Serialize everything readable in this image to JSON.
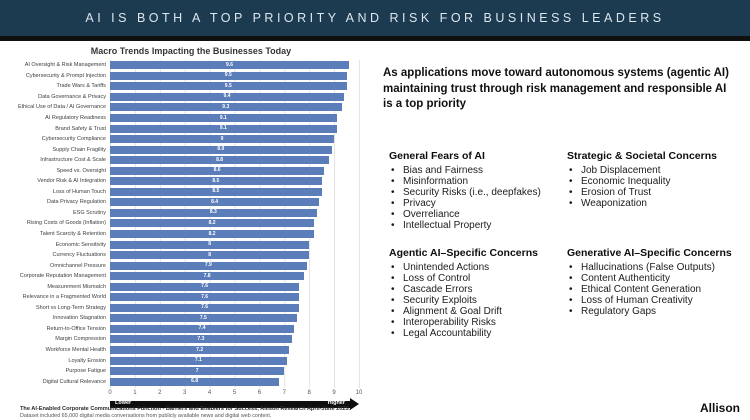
{
  "header": {
    "title": "AI IS BOTH A TOP PRIORITY AND RISK FOR BUSINESS LEADERS"
  },
  "chart_data": {
    "type": "bar",
    "orientation": "horizontal",
    "title": "Macro Trends Impacting the Businesses Today",
    "categories": [
      "AI Oversight & Risk Management",
      "Cybersecurity & Prompt Injection",
      "Trade Wars & Tariffs",
      "Data Governance & Privacy",
      "Ethical Use of Data / AI Governance",
      "AI Regulatory Readiness",
      "Brand Safety & Trust",
      "Cybersecurity Compliance",
      "Supply Chain Fragility",
      "Infrastructure Cost & Scale",
      "Speed vs. Oversight",
      "Vendor Risk & AI Integration",
      "Loss of Human Touch",
      "Data Privacy Regulation",
      "ESG Scrutiny",
      "Rising Costs of Goods (Inflation)",
      "Talent Scarcity & Retention",
      "Economic Sensitivity",
      "Currency Fluctuations",
      "Omnichannel Pressure",
      "Corporate Reputation Management",
      "Measurement Mismatch",
      "Relevance in a Fragmented World",
      "Short vs Long-Term Strategy",
      "Innovation Stagnation",
      "Return-to-Office Tension",
      "Margin Compression",
      "Workforce Mental Health",
      "Loyalty Erosion",
      "Purpose Fatigue",
      "Digital Cultural Relevance"
    ],
    "values": [
      9.6,
      9.5,
      9.5,
      9.4,
      9.3,
      9.1,
      9.1,
      9.0,
      8.9,
      8.8,
      8.6,
      8.5,
      8.5,
      8.4,
      8.3,
      8.2,
      8.2,
      8.0,
      8.0,
      7.9,
      7.8,
      7.6,
      7.6,
      7.6,
      7.5,
      7.4,
      7.3,
      7.2,
      7.1,
      7.0,
      6.8
    ],
    "value_labels": [
      "9.6",
      "9.5",
      "9.5",
      "9.4",
      "9.3",
      "9.1",
      "9.1",
      "9",
      "8.9",
      "8.8",
      "8.6",
      "8.5",
      "8.5",
      "8.4",
      "8.3",
      "8.2",
      "8.2",
      "8",
      "8",
      "7.9",
      "7.8",
      "7.6",
      "7.6",
      "7.6",
      "7.5",
      "7.4",
      "7.3",
      "7.2",
      "7.1",
      "7",
      "6.8"
    ],
    "xlim": [
      0,
      10
    ],
    "x_ticks": [
      "0",
      "1",
      "2",
      "3",
      "4",
      "5",
      "6",
      "7",
      "8",
      "9",
      "10"
    ],
    "bar_color": "#5b7db9",
    "grid": true,
    "axis_arrow": {
      "left_label": "Lower",
      "right_label": "Higher"
    }
  },
  "right_panel": {
    "intro": "As applications move toward autonomous systems (agentic AI) maintaining trust through risk management and responsible AI is a top priority",
    "sections": [
      {
        "heading": "General Fears of AI",
        "items": [
          "Bias and Fairness",
          "Misinformation",
          "Security Risks (i.e., deepfakes)",
          "Privacy",
          "Overreliance",
          "Intellectual Property"
        ]
      },
      {
        "heading": "Strategic & Societal Concerns",
        "items": [
          "Job Displacement",
          "Economic Inequality",
          "Erosion of Trust",
          "Weaponization"
        ]
      },
      {
        "heading": "Agentic AI–Specific Concerns",
        "items": [
          "Unintended Actions",
          "Loss of Control",
          "Cascade Errors",
          "Security Exploits",
          "Alignment & Goal Drift",
          "Interoperability Risks",
          "Legal Accountability"
        ]
      },
      {
        "heading": "Generative AI–Specific Concerns",
        "items": [
          "Hallucinations (False Outputs)",
          "Content Authenticity",
          "Ethical Content Generation",
          "Loss of Human Creativity",
          "Regulatory Gaps"
        ]
      }
    ]
  },
  "footer": {
    "source_line1": "The AI-Enabled Corporate Communications Function - Barriers and Enablers for Success, Allison Research April-June 2025.",
    "source_line2": "Dataset included 65,000 digital media conversations from publicly available news and digital web content.",
    "logo": "Allison"
  }
}
